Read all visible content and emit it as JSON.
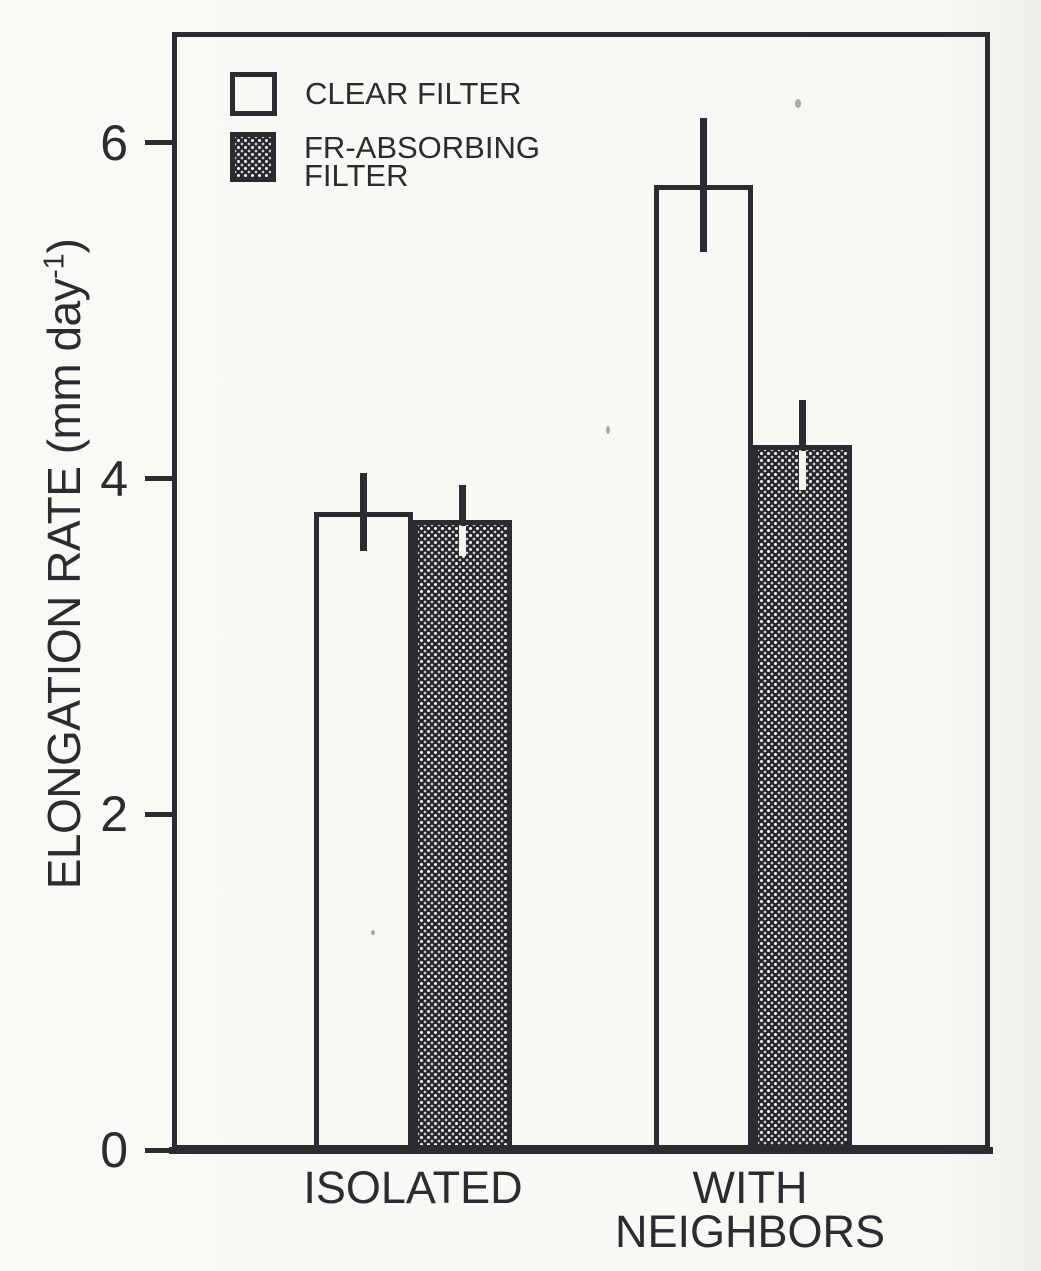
{
  "figure": {
    "paper_color": "#f8f7f3",
    "ink_color": "#2b2b30",
    "stipple_fill_color": "#26262e"
  },
  "chart_data": {
    "type": "bar",
    "title": "",
    "xlabel": "",
    "ylabel": "ELONGATION RATE (mm day⁻¹)",
    "ylabel_parts": {
      "main": "ELONGATION RATE (mm day",
      "sup": "-1",
      "close": ")"
    },
    "ylim": [
      0,
      6.66
    ],
    "yticks": [
      0,
      2,
      4,
      6
    ],
    "grid": false,
    "error_bars": true,
    "categories": [
      "ISOLATED",
      "WITH NEIGHBORS"
    ],
    "series": [
      {
        "name": "CLEAR FILTER",
        "style": "clear",
        "values": [
          3.8,
          5.75
        ],
        "errors": [
          0.23,
          0.4
        ]
      },
      {
        "name": "FR-ABSORBING FILTER",
        "style": "stipple",
        "values": [
          3.75,
          4.2
        ],
        "errors": [
          0.21,
          0.27
        ]
      }
    ],
    "legend": {
      "position": "top-left",
      "items": [
        {
          "label": "CLEAR FILTER",
          "label_lines": [
            "CLEAR FILTER"
          ],
          "swatch": "clear"
        },
        {
          "label": "FR-ABSORBING FILTER",
          "label_lines": [
            "FR-ABSORBING",
            "FILTER"
          ],
          "swatch": "stipple"
        }
      ]
    }
  }
}
